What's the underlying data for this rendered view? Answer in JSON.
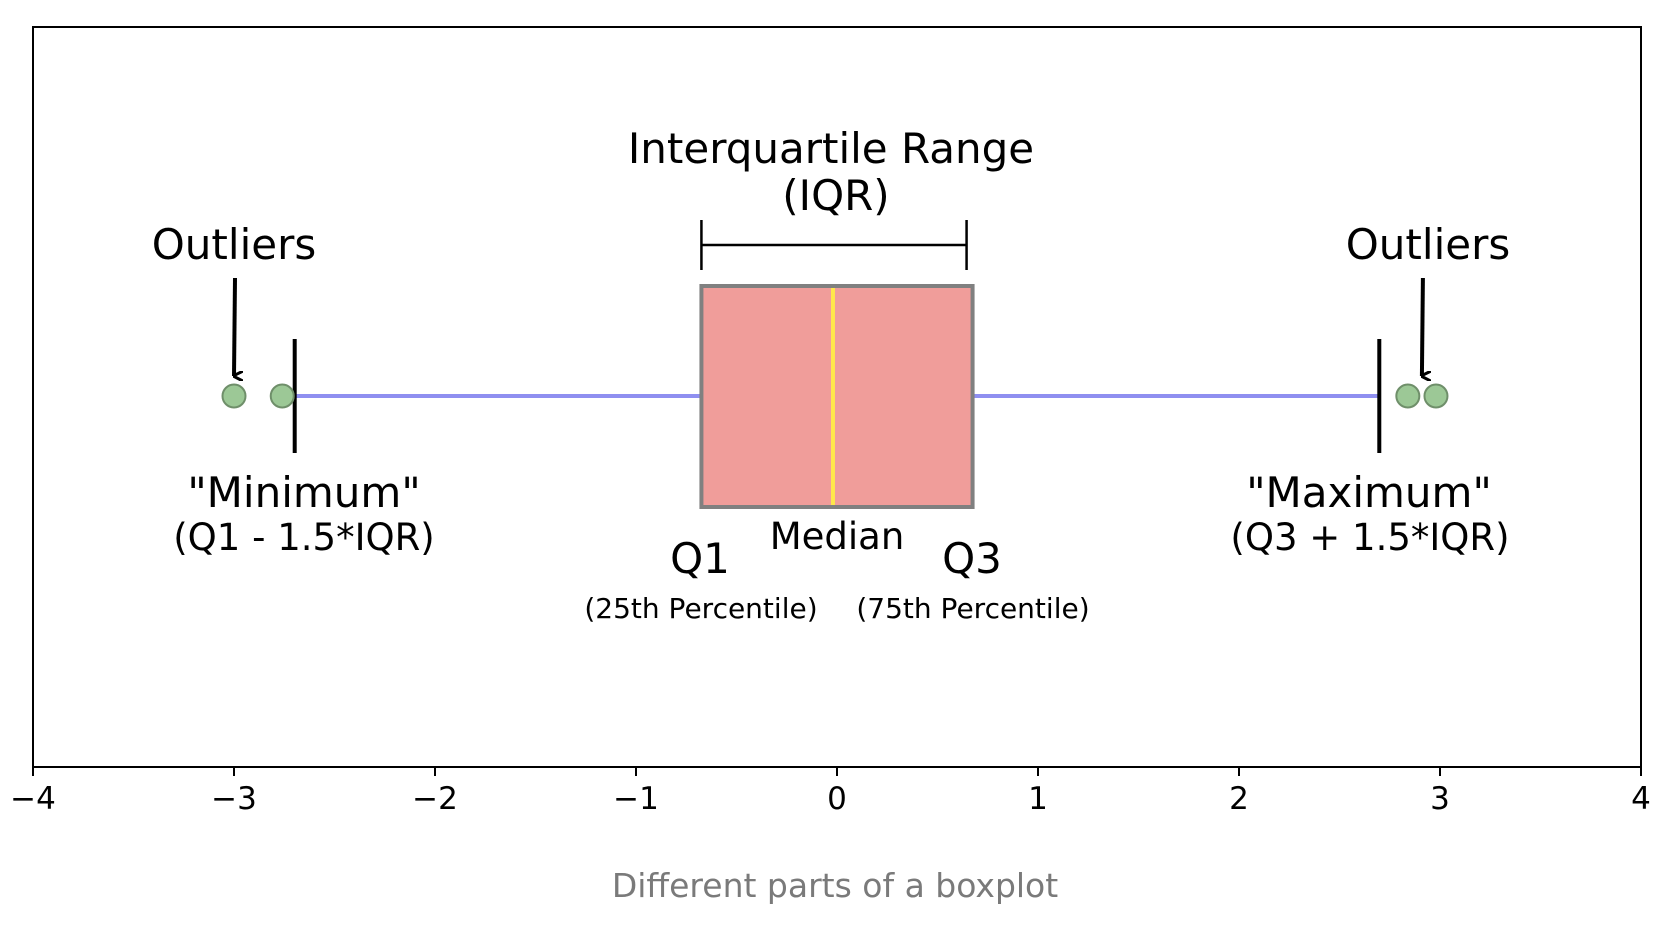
{
  "chart_data": {
    "type": "boxplot",
    "xlim": [
      -4,
      4
    ],
    "x_ticks": [
      -4,
      -3,
      -2,
      -1,
      0,
      1,
      2,
      3,
      4
    ],
    "x_tick_labels": [
      "−4",
      "−3",
      "−2",
      "−1",
      "0",
      "1",
      "2",
      "3",
      "4"
    ],
    "grid": false,
    "box": {
      "q1": -0.6745,
      "median": -0.02,
      "q3": 0.6745,
      "whisker_low": -2.698,
      "whisker_high": 2.698
    },
    "outliers": [
      -3.0,
      -2.76,
      2.84,
      2.98
    ],
    "colors": {
      "box_fill": "#f09d9a",
      "box_edge": "#808080",
      "median_line": "#ffe84a",
      "whisker": "#8f8ff0",
      "outlier_fill": "#9cc896",
      "outlier_edge": "#6f8f6a",
      "caption": "#7a7a7a"
    },
    "annotations": {
      "iqr_title": "Interquartile Range",
      "iqr_sub": "(IQR)",
      "outliers_left": "Outliers",
      "outliers_right": "Outliers",
      "minimum": "\"Minimum\"",
      "minimum_formula": "(Q1 - 1.5*IQR)",
      "maximum": "\"Maximum\"",
      "maximum_formula": "(Q3 + 1.5*IQR)",
      "median": "Median",
      "q1": "Q1",
      "q1_sub": "(25th Percentile)",
      "q3": "Q3",
      "q3_sub": "(75th Percentile)"
    }
  },
  "caption": "Different parts of a boxplot"
}
